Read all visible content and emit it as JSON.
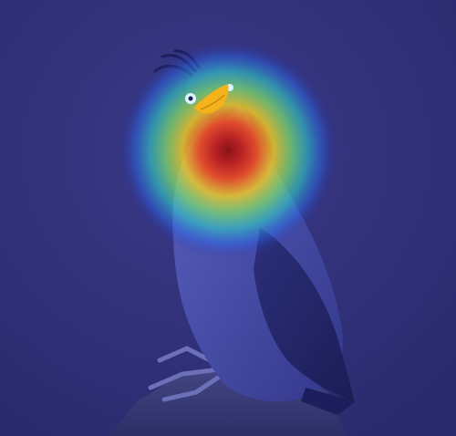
{
  "image": {
    "subject": "crested auklet",
    "overlay": "saliency-heatmap",
    "colors": {
      "background": "#35357e",
      "background_edge": "#2a2a6e",
      "bird_body": "#4a4fa8",
      "bird_shadow": "#2e3080",
      "bird_dark": "#1d1f5c",
      "rock": "#3b3d78",
      "beak": "#f5b21a",
      "eye": "#d8f4ff",
      "heat_hot": "#b01818",
      "heat_warm": "#f24a1a",
      "heat_mid": "#f7d21f",
      "heat_cool": "#3fe0a0",
      "heat_cold": "#2a8cf0"
    }
  }
}
